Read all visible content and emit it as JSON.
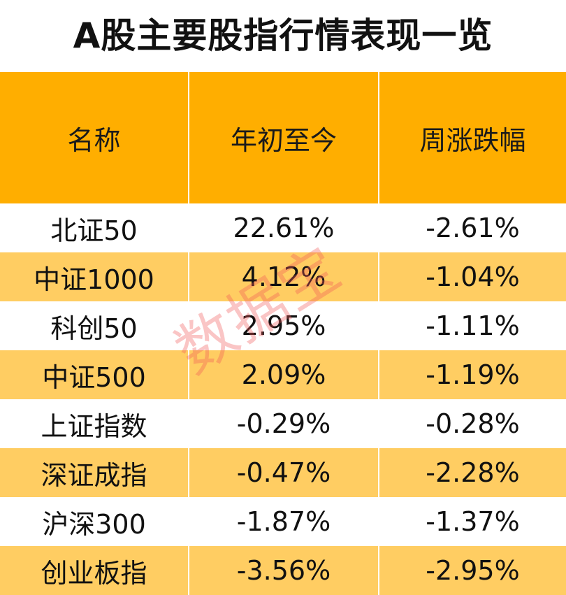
{
  "title": "A股主要股指行情表现一览",
  "table": {
    "headers": [
      "名称",
      "年初至今",
      "周涨跌幅"
    ],
    "rows": [
      [
        "北证50",
        "22.61%",
        "-2.61%"
      ],
      [
        "中证1000",
        "4.12%",
        "-1.04%"
      ],
      [
        "科创50",
        "2.95%",
        "-1.11%"
      ],
      [
        "中证500",
        "2.09%",
        "-1.19%"
      ],
      [
        "上证指数",
        "-0.29%",
        "-0.28%"
      ],
      [
        "深证成指",
        "-0.47%",
        "-2.28%"
      ],
      [
        "沪深300",
        "-1.87%",
        "-1.37%"
      ],
      [
        "创业板指",
        "-3.56%",
        "-2.95%"
      ]
    ]
  },
  "watermark": "数据宝",
  "colors": {
    "header_bg": "#FFAE00",
    "stripe_bg": "#FFCD62",
    "watermark": "#F05A5A"
  }
}
